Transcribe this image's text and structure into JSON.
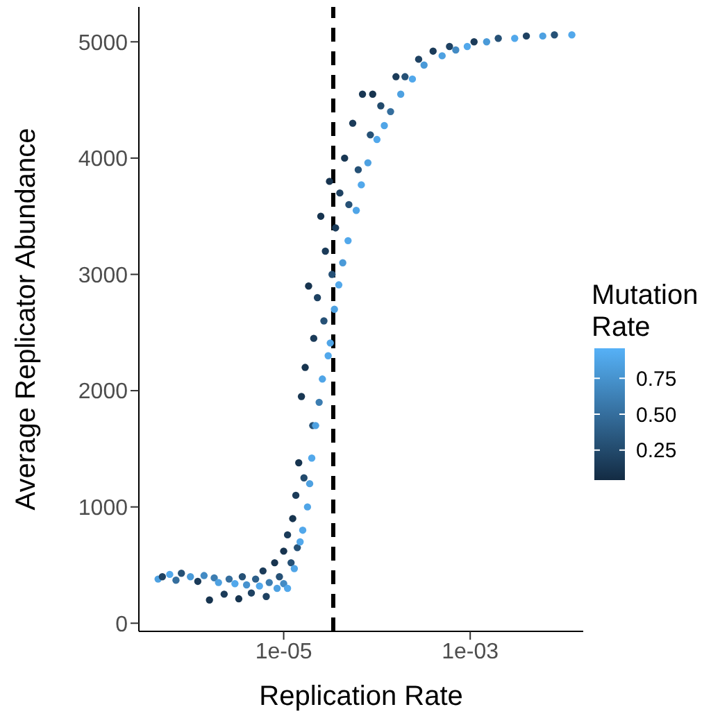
{
  "chart_data": {
    "type": "scatter",
    "xlabel": "Replication Rate",
    "ylabel": "Average  Replicator Abundance",
    "clabel": "Mutation Rate",
    "log": "x",
    "grid": false,
    "marker": "circle",
    "xlim": [
      2.8e-07,
      0.0163
    ],
    "xticks": [
      {
        "value": 1e-05,
        "label": "1e-05"
      },
      {
        "value": 0.001,
        "label": "1e-03"
      }
    ],
    "ylim": [
      -70,
      5300
    ],
    "yticks": [
      0,
      1000,
      2000,
      3000,
      4000,
      5000
    ],
    "clim": [
      0.04,
      0.96
    ],
    "cticks": [
      {
        "value": 0.25,
        "label": "0.25"
      },
      {
        "value": 0.5,
        "label": "0.50"
      },
      {
        "value": 0.75,
        "label": "0.75"
      }
    ],
    "ref_lines": [
      {
        "axis": "x",
        "value": 3.4e-05,
        "line_style": "dashed",
        "color": "#000000"
      }
    ],
    "x": [
      4.5e-07,
      5e-07,
      6e-07,
      7e-07,
      8e-07,
      1e-06,
      1.2e-06,
      1.4e-06,
      1.6e-06,
      1.8e-06,
      2e-06,
      2.3e-06,
      2.6e-06,
      3e-06,
      3.3e-06,
      3.6e-06,
      4e-06,
      4.5e-06,
      5e-06,
      5.5e-06,
      6e-06,
      6.5e-06,
      7e-06,
      8e-06,
      8.5e-06,
      9e-06,
      1e-05,
      1e-05,
      1.1e-05,
      1.1e-05,
      1.2e-05,
      1.25e-05,
      1.3e-05,
      1.35e-05,
      1.4e-05,
      1.45e-05,
      1.5e-05,
      1.55e-05,
      1.6e-05,
      1.65e-05,
      1.7e-05,
      1.8e-05,
      1.85e-05,
      1.9e-05,
      2e-05,
      2.05e-05,
      2.1e-05,
      2.2e-05,
      2.3e-05,
      2.4e-05,
      2.5e-05,
      2.6e-05,
      2.7e-05,
      2.8e-05,
      3e-05,
      3.1e-05,
      3.16e-05,
      3.3e-05,
      3.5e-05,
      3.6e-05,
      3.9e-05,
      4e-05,
      4.3e-05,
      4.5e-05,
      4.9e-05,
      5e-05,
      5.5e-05,
      6e-05,
      6.3e-05,
      6.8e-05,
      7e-05,
      8e-05,
      8.5e-05,
      9e-05,
      0.0001,
      0.00011,
      0.00012,
      0.00014,
      0.00016,
      0.00018,
      0.0002,
      0.00024,
      0.00028,
      0.00032,
      0.0004,
      0.0005,
      0.0006,
      0.0007,
      0.00093,
      0.0011,
      0.0015,
      0.002,
      0.003,
      0.004,
      0.006,
      0.008,
      0.0123
    ],
    "values": [
      380,
      400,
      420,
      370,
      430,
      400,
      360,
      410,
      200,
      390,
      350,
      250,
      380,
      340,
      210,
      400,
      330,
      260,
      380,
      320,
      450,
      230,
      350,
      520,
      300,
      400,
      620,
      340,
      760,
      300,
      520,
      900,
      470,
      1100,
      650,
      1380,
      700,
      1950,
      800,
      1250,
      2200,
      1000,
      2900,
      1200,
      1420,
      1700,
      2450,
      1700,
      2800,
      1900,
      3500,
      2100,
      2600,
      3200,
      2300,
      3800,
      2410,
      3000,
      2700,
      3400,
      2910,
      3700,
      3100,
      4000,
      3290,
      3600,
      4300,
      3550,
      3900,
      3770,
      4550,
      3960,
      4200,
      4550,
      4160,
      4450,
      4280,
      4400,
      4700,
      4550,
      4700,
      4680,
      4850,
      4800,
      4920,
      4880,
      4960,
      4930,
      4960,
      5000,
      5000,
      5030,
      5030,
      5050,
      5050,
      5060,
      5060
    ],
    "cvalues": [
      0.85,
      0.2,
      0.9,
      0.5,
      0.3,
      0.8,
      0.15,
      0.7,
      0.1,
      0.6,
      0.85,
      0.15,
      0.5,
      0.9,
      0.1,
      0.3,
      0.75,
      0.2,
      0.4,
      0.9,
      0.15,
      0.2,
      0.6,
      0.1,
      0.85,
      0.3,
      0.1,
      0.7,
      0.15,
      0.9,
      0.3,
      0.1,
      0.88,
      0.15,
      0.3,
      0.1,
      0.9,
      0.12,
      0.9,
      0.25,
      0.1,
      0.88,
      0.1,
      0.85,
      0.9,
      0.3,
      0.15,
      0.85,
      0.2,
      0.6,
      0.1,
      0.88,
      0.3,
      0.15,
      0.9,
      0.1,
      0.88,
      0.3,
      0.85,
      0.15,
      0.9,
      0.2,
      0.8,
      0.12,
      0.9,
      0.3,
      0.15,
      0.88,
      0.3,
      0.9,
      0.12,
      0.85,
      0.3,
      0.1,
      0.9,
      0.25,
      0.88,
      0.5,
      0.15,
      0.85,
      0.3,
      0.9,
      0.2,
      0.8,
      0.15,
      0.85,
      0.2,
      0.7,
      0.9,
      0.15,
      0.8,
      0.3,
      0.9,
      0.2,
      0.85,
      0.3,
      0.9
    ]
  }
}
